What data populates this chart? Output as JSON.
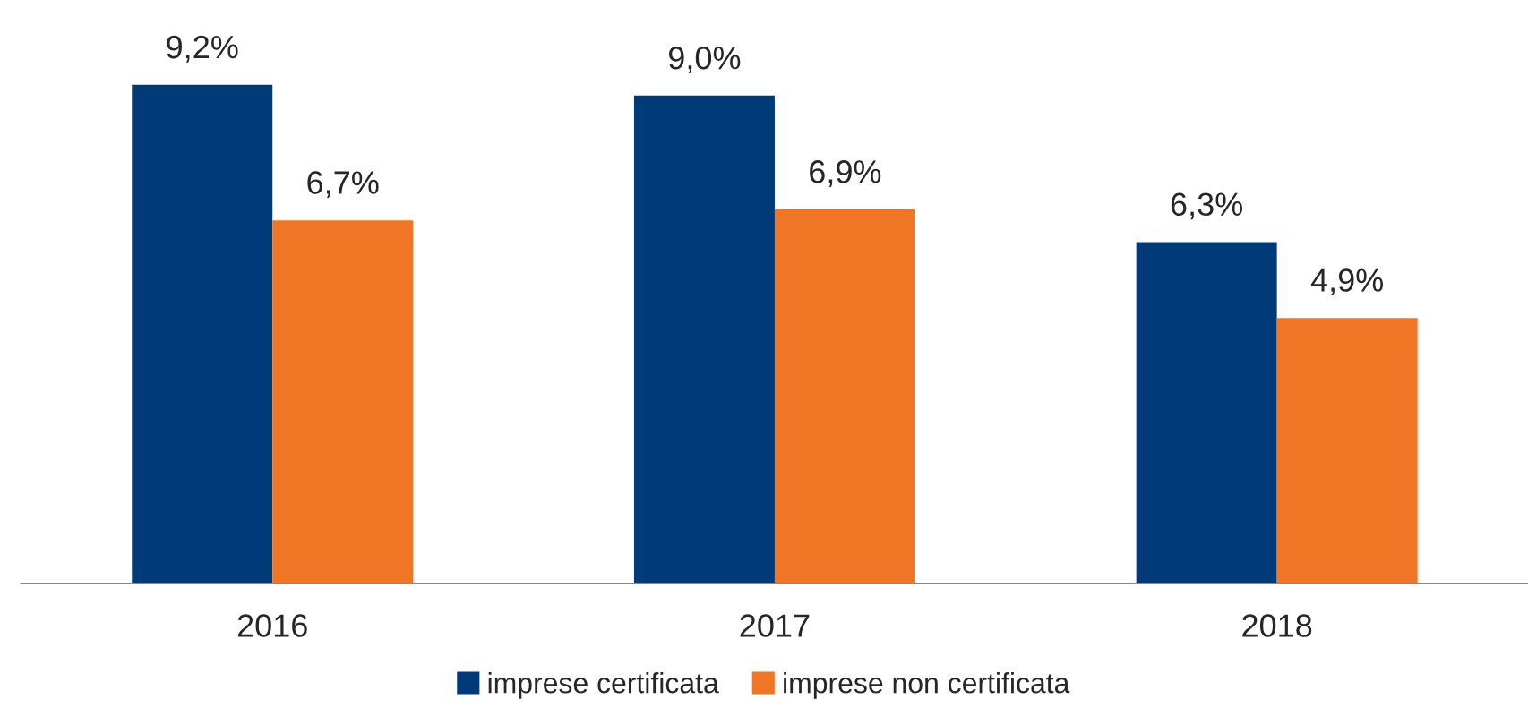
{
  "chart_data": {
    "type": "bar",
    "categories": [
      "2016",
      "2017",
      "2018"
    ],
    "series": [
      {
        "name": "imprese certificata",
        "color": "#003a78",
        "values": [
          9.2,
          9.0,
          6.3
        ],
        "value_labels": [
          "9,2%",
          "9,0%",
          "6,3%"
        ]
      },
      {
        "name": "imprese non certificata",
        "color": "#f07524",
        "values": [
          6.7,
          6.9,
          4.9
        ],
        "value_labels": [
          "6,7%",
          "6,9%",
          "4,9%"
        ]
      }
    ],
    "legend": "bottom",
    "grid": false
  }
}
